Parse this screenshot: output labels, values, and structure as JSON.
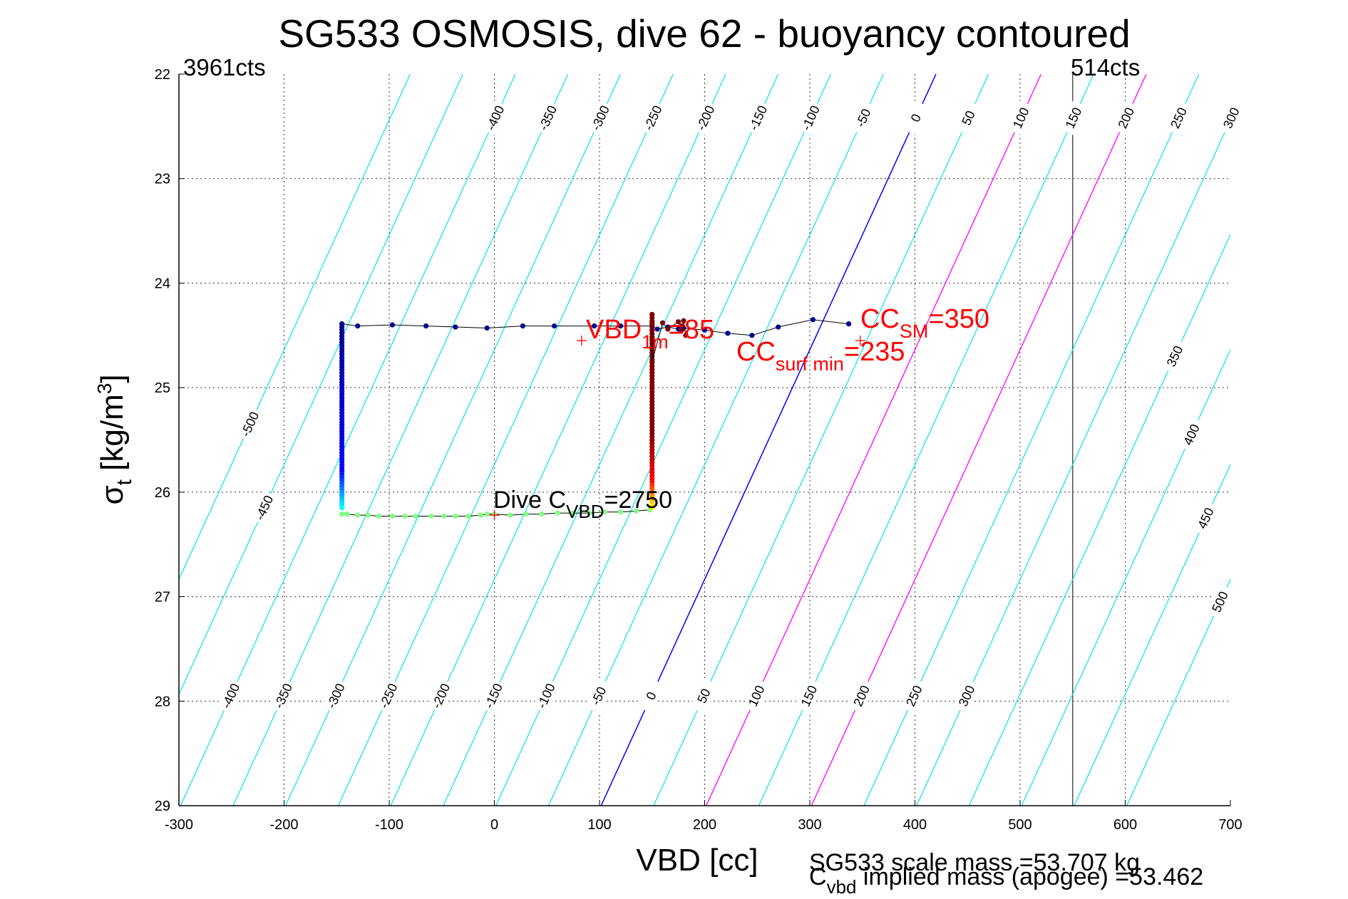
{
  "chart_data": {
    "type": "line",
    "title": "SG533 OSMOSIS, dive 62 - buoyancy contoured",
    "xlabel": "VBD [cc]",
    "ylabel": {
      "main": "σ",
      "sub": "t",
      "unit": " [kg/m",
      "sup": "3",
      "close": "]"
    },
    "xlim": [
      -300,
      700
    ],
    "ylim": [
      22,
      29
    ],
    "y_reversed": true,
    "grid": true,
    "xticks": [
      "-300",
      "-200",
      "-100",
      "0",
      "100",
      "200",
      "300",
      "400",
      "500",
      "600",
      "700"
    ],
    "yticks": [
      "22",
      "23",
      "24",
      "25",
      "26",
      "27",
      "28",
      "29"
    ],
    "top_left_label": "3961cts",
    "top_right_label": "514cts",
    "vbd_limit_line_x": 550,
    "buoyancy_contours": {
      "levels": [
        -500,
        -450,
        -400,
        -350,
        -300,
        -250,
        -200,
        -150,
        -100,
        -50,
        0,
        50,
        100,
        150,
        200,
        250,
        300,
        350,
        400,
        450,
        500
      ],
      "slope_cc_per_sigma": -45.5,
      "zero_anchor": {
        "vbd": 420,
        "sigma": 22
      },
      "colors": {
        "default": "#00e5ee",
        "zero": "#0000ff",
        "scale_mass": "#ff00ff"
      },
      "magenta_levels": [
        100,
        200
      ],
      "top_labels": [
        "-400",
        "-350",
        "-300",
        "-250",
        "-200",
        "-150",
        "-100",
        "-50",
        "0",
        "50",
        "100",
        "150",
        "200",
        "250",
        "300"
      ],
      "bottom_labels": [
        "-400",
        "-350",
        "-300",
        "-250",
        "-200",
        "-150",
        "-100",
        "-50",
        "0",
        "50",
        "100",
        "150",
        "200",
        "250",
        "300"
      ],
      "left_labels": [
        "-500",
        "-450"
      ],
      "right_labels": [
        "350",
        "400",
        "450",
        "500"
      ]
    },
    "series": [
      {
        "segment": "descent-surface",
        "color": "#00008f",
        "points": [
          [
            337,
            24.39
          ],
          [
            303,
            24.35
          ],
          [
            270,
            24.42
          ],
          [
            245,
            24.5
          ],
          [
            222,
            24.48
          ],
          [
            200,
            24.45
          ],
          [
            180,
            24.43
          ],
          [
            175,
            24.44
          ],
          [
            165,
            24.42
          ],
          [
            155,
            24.44
          ],
          [
            150,
            24.41
          ],
          [
            120,
            24.41
          ],
          [
            95,
            24.41
          ],
          [
            57,
            24.41
          ],
          [
            27,
            24.41
          ],
          [
            -7,
            24.43
          ],
          [
            -37,
            24.42
          ],
          [
            -65,
            24.41
          ],
          [
            -97,
            24.4
          ],
          [
            -130,
            24.41
          ],
          [
            -145,
            24.39
          ]
        ]
      },
      {
        "segment": "descent-column",
        "color_start": "#00008f",
        "color_end": "#00ffff",
        "x": -145,
        "sigma_start": 24.39,
        "sigma_end": 26.15
      },
      {
        "segment": "apogee-bottom",
        "color": "#80ff80",
        "points": [
          [
            -145,
            26.21
          ],
          [
            -140,
            26.21
          ],
          [
            -130,
            26.22
          ],
          [
            -120,
            26.22
          ],
          [
            -110,
            26.23
          ],
          [
            -97,
            26.23
          ],
          [
            -85,
            26.23
          ],
          [
            -75,
            26.23
          ],
          [
            -60,
            26.23
          ],
          [
            -48,
            26.23
          ],
          [
            -37,
            26.23
          ],
          [
            -25,
            26.23
          ],
          [
            -13,
            26.22
          ],
          [
            -7,
            26.21
          ],
          [
            0,
            26.21
          ],
          [
            15,
            26.22
          ],
          [
            30,
            26.21
          ],
          [
            45,
            26.21
          ],
          [
            60,
            26.2
          ],
          [
            75,
            26.2
          ],
          [
            90,
            26.2
          ],
          [
            105,
            26.19
          ],
          [
            120,
            26.19
          ],
          [
            135,
            26.18
          ],
          [
            148,
            26.17
          ]
        ]
      },
      {
        "segment": "climb-column",
        "color_start": "#ffff00",
        "color_mid": "#ff0000",
        "color_end": "#800000",
        "x": 150,
        "sigma_start": 26.15,
        "sigma_end": 24.3
      },
      {
        "segment": "climb-surface",
        "color": "#800000",
        "points": [
          [
            150,
            24.3
          ],
          [
            150,
            24.38
          ],
          [
            150,
            24.45
          ],
          [
            150,
            24.52
          ],
          [
            150,
            24.62
          ],
          [
            150,
            24.75
          ],
          [
            160,
            24.38
          ],
          [
            165,
            24.44
          ],
          [
            175,
            24.37
          ],
          [
            178,
            24.41
          ],
          [
            178,
            24.45
          ],
          [
            180,
            24.36
          ],
          [
            182,
            24.5
          ]
        ]
      }
    ],
    "markers": [
      {
        "name": "vbd-1m",
        "x": 83,
        "sigma": 24.55
      },
      {
        "name": "cc-surf-min",
        "x": 348,
        "sigma": 24.55
      },
      {
        "name": "dive-cvbd",
        "x": 0,
        "sigma": 26.22
      }
    ],
    "annotations": {
      "vbd_1m": {
        "main": "VBD",
        "sub": "1m",
        "value": "=85"
      },
      "cc_sm": {
        "main": "CC",
        "sub": "SM",
        "value": "=350"
      },
      "cc_surf_min": {
        "main": "CC",
        "sub": "surf min",
        "value": "=235"
      },
      "dive_cvbd": {
        "main": "Dive C",
        "sub": "VBD",
        "value": "=2750"
      }
    },
    "footer": {
      "scale_mass": "SG533 scale mass =53.707 kg",
      "implied_main": "C",
      "implied_sub": "vbd",
      "implied_rest": " implied mass (apogee) =53.462"
    }
  }
}
